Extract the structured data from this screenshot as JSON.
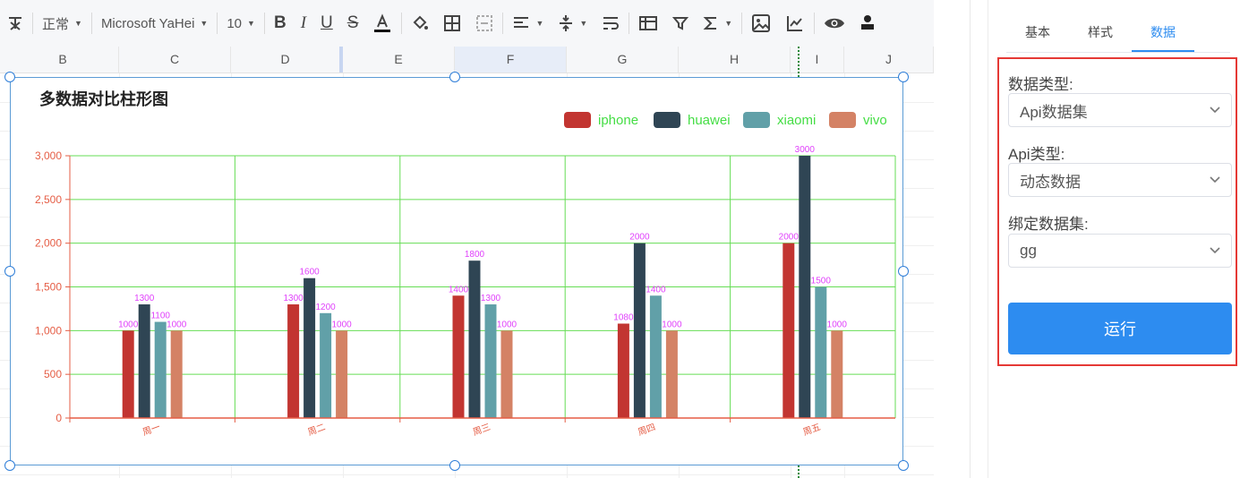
{
  "toolbar": {
    "style_select": "正常",
    "font_select": "Microsoft YaHei",
    "size_select": "10"
  },
  "columns": [
    "B",
    "C",
    "D",
    "E",
    "F",
    "G",
    "H",
    "I",
    "J"
  ],
  "chart_data": {
    "type": "bar",
    "title": "多数据对比柱形图",
    "categories": [
      "周一",
      "周二",
      "周三",
      "周四",
      "周五"
    ],
    "series": [
      {
        "name": "iphone",
        "color": "#c23531",
        "values": [
          1000,
          1300,
          1400,
          1080,
          2000
        ]
      },
      {
        "name": "huawei",
        "color": "#2f4554",
        "values": [
          1300,
          1600,
          1800,
          2000,
          3000
        ]
      },
      {
        "name": "xiaomi",
        "color": "#61a0a8",
        "values": [
          1100,
          1200,
          1300,
          1400,
          1500
        ]
      },
      {
        "name": "vivo",
        "color": "#d48265",
        "values": [
          1000,
          1000,
          1000,
          1000,
          1000
        ]
      }
    ],
    "yticks": [
      "0",
      "500",
      "1,000",
      "1,500",
      "2,000",
      "2,500",
      "3,000"
    ],
    "ylim": [
      0,
      3000
    ],
    "grid": true,
    "grid_color": "#66dd55",
    "axis_color": "#e55d45",
    "label_color": "#e040fb",
    "legend_text_color": "#44dd44",
    "legend_position": "top-right"
  },
  "panel": {
    "tabs": [
      "基本",
      "样式",
      "数据"
    ],
    "active_tab": "数据",
    "data_type_label": "数据类型:",
    "data_type_value": "Api数据集",
    "api_type_label": "Api类型:",
    "api_type_value": "动态数据",
    "dataset_label": "绑定数据集:",
    "dataset_value": "gg",
    "run_button": "运行"
  }
}
